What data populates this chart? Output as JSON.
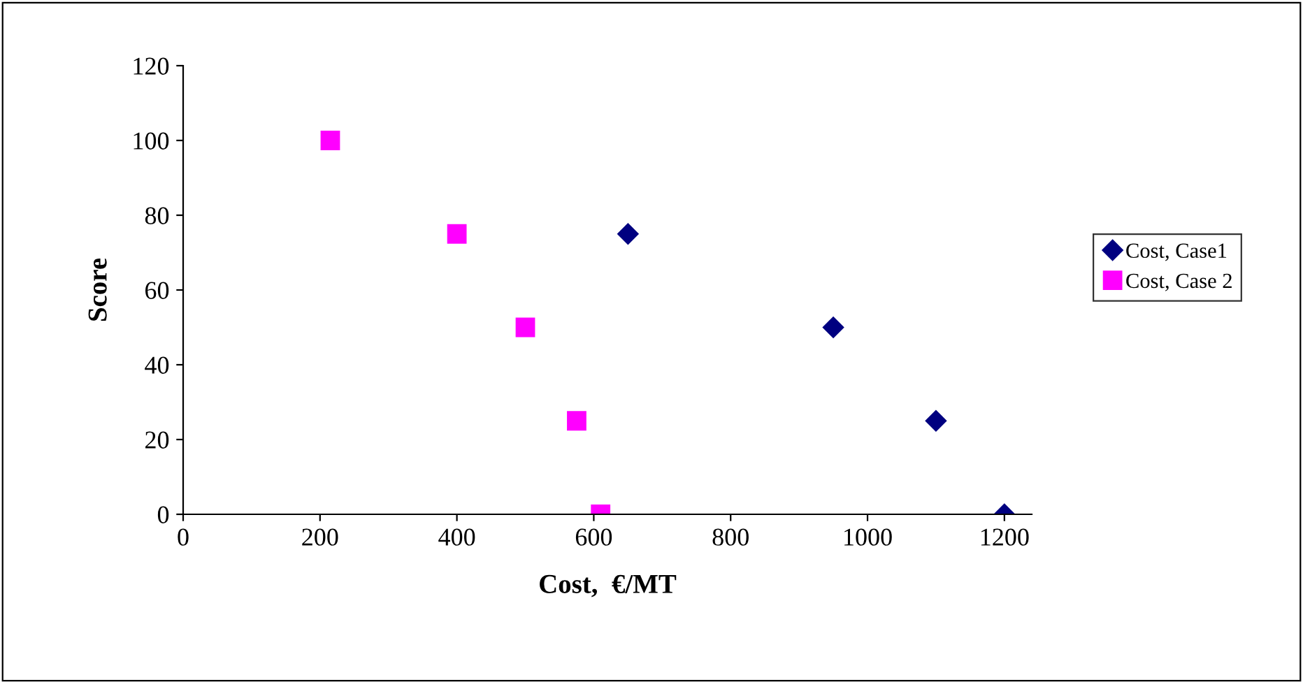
{
  "chart_data": {
    "type": "scatter",
    "xlabel": "Cost,  €/MT",
    "ylabel": "Score",
    "series": [
      {
        "name": "Cost, Case1",
        "color": "#000080",
        "marker": "diamond",
        "x": [
          650,
          950,
          1100,
          1200
        ],
        "values": [
          75,
          50,
          25,
          0
        ]
      },
      {
        "name": "Cost, Case 2",
        "color": "#ff00ff",
        "marker": "square",
        "x": [
          215,
          400,
          500,
          575,
          610
        ],
        "values": [
          100,
          75,
          50,
          25,
          0
        ]
      }
    ],
    "xlim": [
      0,
      1240
    ],
    "xticks": [
      0,
      200,
      400,
      600,
      800,
      1000,
      1200
    ],
    "ylim": [
      0,
      120
    ],
    "yticks": [
      0,
      20,
      40,
      60,
      80,
      100,
      120
    ],
    "grid": false,
    "legend": "right"
  }
}
